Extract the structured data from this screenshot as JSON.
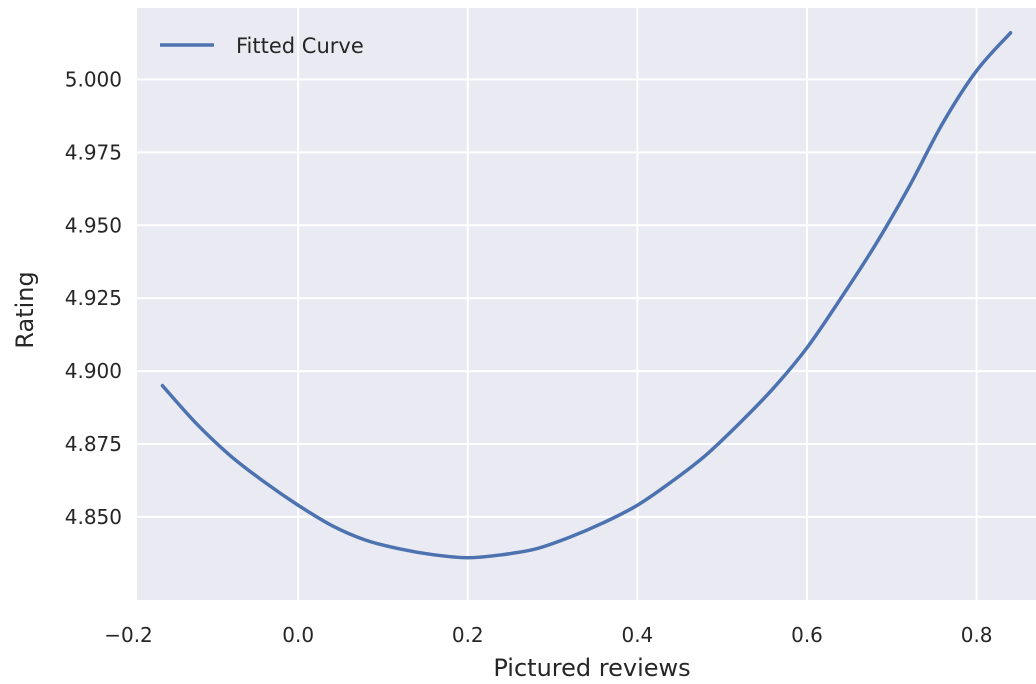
{
  "chart_data": {
    "type": "line",
    "title": "",
    "xlabel": "Pictured reviews",
    "ylabel": "Rating",
    "xlim": [
      -0.19,
      0.87
    ],
    "ylim": [
      4.8215,
      5.0245
    ],
    "xticks": [
      -0.2,
      0.0,
      0.2,
      0.4,
      0.6,
      0.8
    ],
    "xtick_labels": [
      "−0.2",
      "0.0",
      "0.2",
      "0.4",
      "0.6",
      "0.8"
    ],
    "yticks": [
      4.85,
      4.875,
      4.9,
      4.925,
      4.95,
      4.975,
      5.0
    ],
    "ytick_labels": [
      "4.850",
      "4.875",
      "4.900",
      "4.925",
      "4.950",
      "4.975",
      "5.000"
    ],
    "grid": true,
    "legend_position": "top-left",
    "series": [
      {
        "name": "Fitted Curve",
        "color": "#4c72b0",
        "x": [
          -0.16,
          -0.12,
          -0.08,
          -0.04,
          0.0,
          0.04,
          0.08,
          0.12,
          0.16,
          0.2,
          0.24,
          0.28,
          0.32,
          0.36,
          0.4,
          0.44,
          0.48,
          0.52,
          0.56,
          0.6,
          0.64,
          0.68,
          0.72,
          0.76,
          0.8,
          0.84
        ],
        "y": [
          4.895,
          4.882,
          4.871,
          4.862,
          4.854,
          4.847,
          4.842,
          4.839,
          4.837,
          4.836,
          4.837,
          4.839,
          4.843,
          4.848,
          4.854,
          4.862,
          4.871,
          4.882,
          4.894,
          4.908,
          4.925,
          4.943,
          4.963,
          4.985,
          5.003,
          5.016
        ]
      }
    ]
  }
}
